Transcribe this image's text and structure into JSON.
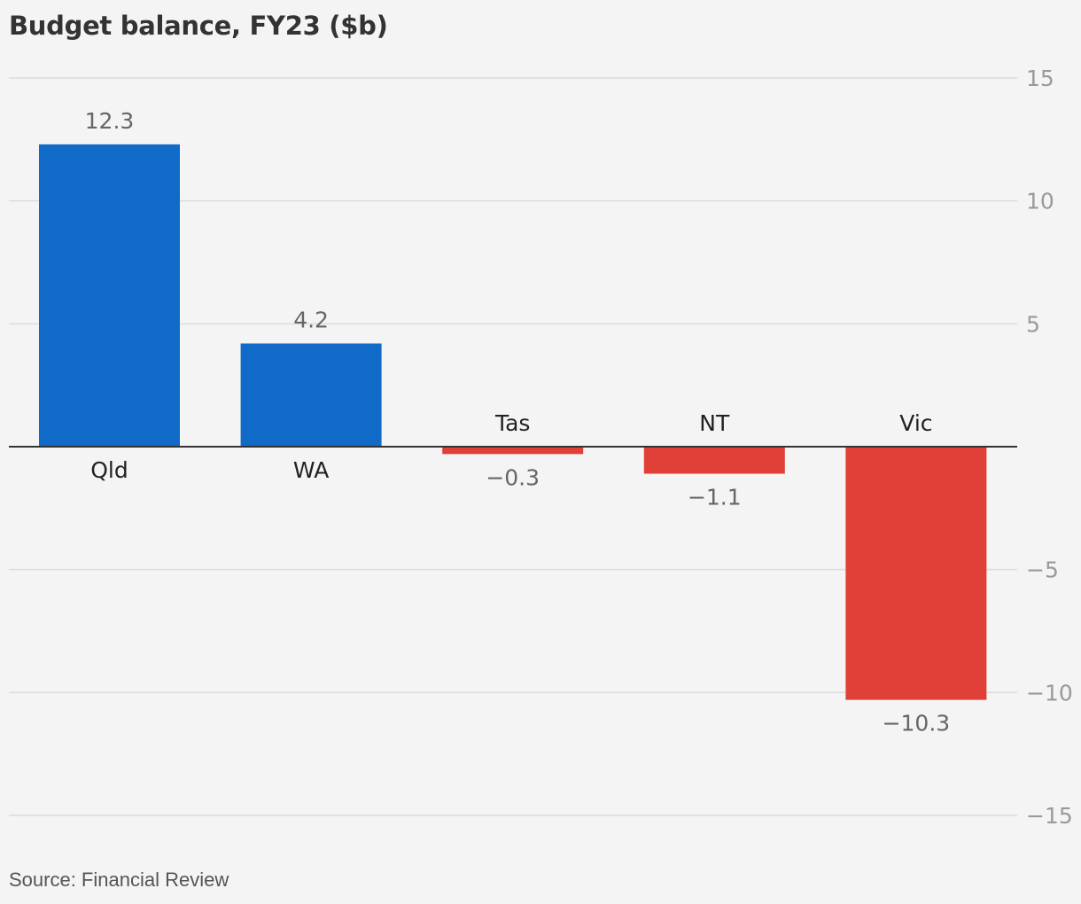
{
  "title": "Budget balance, FY23 ($b)",
  "source": "Source: Financial Review",
  "chart_data": {
    "type": "bar",
    "title": "Budget balance, FY23 ($b)",
    "xlabel": "",
    "ylabel": "",
    "categories": [
      "Qld",
      "WA",
      "Tas",
      "NT",
      "Vic"
    ],
    "values": [
      12.3,
      4.2,
      -0.3,
      -1.1,
      -10.3
    ],
    "value_labels": [
      "12.3",
      "4.2",
      "−0.3",
      "−1.1",
      "−10.3"
    ],
    "ylim": [
      -15,
      15
    ],
    "yticks": [
      15,
      10,
      5,
      -5,
      -10,
      -15
    ],
    "ytick_labels": [
      "15",
      "10",
      "5",
      "−5",
      "−10",
      "−15"
    ],
    "grid": true,
    "y_axis_side": "right",
    "colors": {
      "positive": "#106bc8",
      "negative": "#e04037",
      "grid": "#dcdcdc",
      "baseline": "#333333"
    }
  }
}
